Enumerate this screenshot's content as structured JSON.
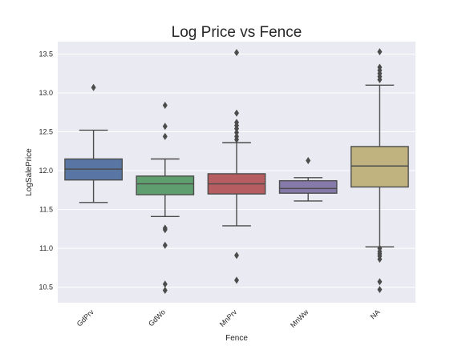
{
  "chart_data": {
    "type": "box",
    "title": "Log Price vs Fence",
    "xlabel": "Fence",
    "ylabel": "LogSalePrice",
    "ylim": [
      10.3,
      13.66
    ],
    "yticks": [
      "10.5",
      "11.0",
      "11.5",
      "12.0",
      "12.5",
      "13.0",
      "13.5"
    ],
    "grid": true,
    "background": "#EAEAF2",
    "categories": [
      "GdPrv",
      "GdWo",
      "MnPrv",
      "MnWw",
      "NA"
    ],
    "boxes": [
      {
        "category": "GdPrv",
        "color": "#5875A4",
        "whisker_low": 11.59,
        "q1": 11.88,
        "median": 12.02,
        "q3": 12.15,
        "whisker_high": 12.52,
        "outliers": [
          13.07
        ]
      },
      {
        "category": "GdWo",
        "color": "#5F9E6E",
        "whisker_low": 11.41,
        "q1": 11.69,
        "median": 11.83,
        "q3": 11.93,
        "whisker_high": 12.15,
        "outliers": [
          10.46,
          10.54,
          11.04,
          11.24,
          11.26,
          12.44,
          12.57,
          12.84
        ]
      },
      {
        "category": "MnPrv",
        "color": "#B55D60",
        "whisker_low": 11.29,
        "q1": 11.7,
        "median": 11.83,
        "q3": 11.96,
        "whisker_high": 12.36,
        "outliers": [
          10.59,
          10.91,
          12.4,
          12.44,
          12.49,
          12.54,
          12.58,
          12.62,
          12.74,
          13.52
        ]
      },
      {
        "category": "MnWw",
        "color": "#857AAA",
        "whisker_low": 11.61,
        "q1": 11.71,
        "median": 11.77,
        "q3": 11.87,
        "whisker_high": 11.91,
        "outliers": [
          12.13
        ]
      },
      {
        "category": "NA",
        "color": "#C1B37F",
        "whisker_low": 11.02,
        "q1": 11.79,
        "median": 12.06,
        "q3": 12.31,
        "whisker_high": 13.1,
        "outliers": [
          10.47,
          10.57,
          10.86,
          10.9,
          10.93,
          10.96,
          11.0,
          13.17,
          13.21,
          13.25,
          13.29,
          13.33,
          13.53
        ]
      }
    ]
  }
}
